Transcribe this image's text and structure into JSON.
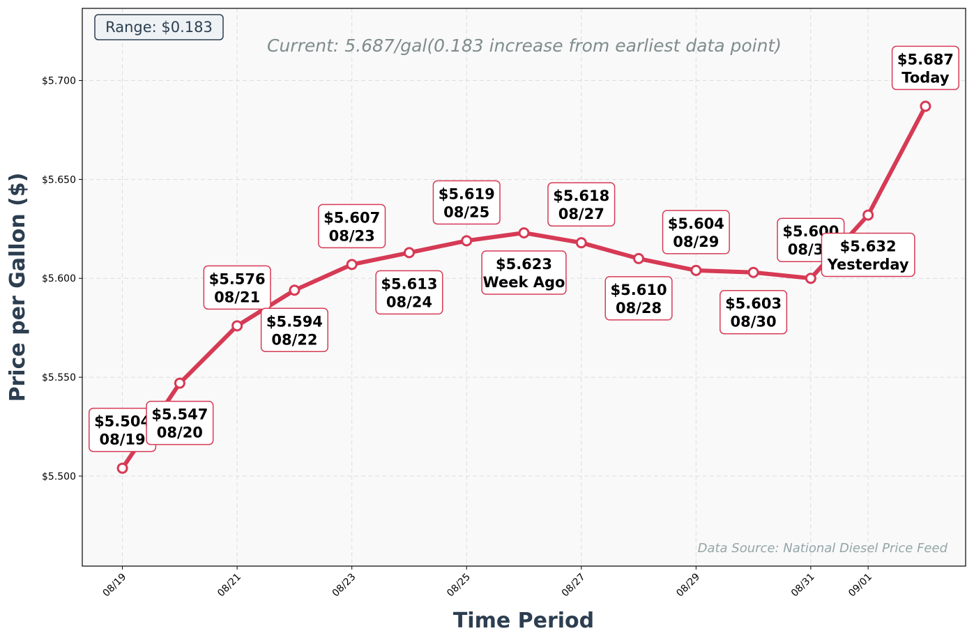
{
  "chart_data": {
    "type": "line",
    "subtitle": "Current: 5.687/gal(0.183 increase from earliest data point)",
    "xlabel": "Time Period",
    "ylabel": "Price per Gallon ($)",
    "range_label": "Range: $0.183",
    "source_note": "Data Source: National Diesel Price Feed",
    "ylim": [
      5.4545,
      5.7365
    ],
    "yticks": [
      5.5,
      5.55,
      5.6,
      5.65,
      5.7
    ],
    "ytick_labels": [
      "$5.500",
      "$5.550",
      "$5.600",
      "$5.650",
      "$5.700"
    ],
    "xlim": [
      "08/18",
      "09/03"
    ],
    "xticks": [
      "08/19",
      "08/21",
      "08/23",
      "08/25",
      "08/27",
      "08/29",
      "08/31",
      "09/01"
    ],
    "grid": true,
    "colors": {
      "line": "#d63a55",
      "marker_fill": "#ffffff",
      "plot_bg": "#f9f9f9",
      "label_border": "#d63a55"
    },
    "series": [
      {
        "x": [
          "08/19",
          "08/20",
          "08/21",
          "08/22",
          "08/23",
          "08/24",
          "08/25",
          "08/26",
          "08/27",
          "08/28",
          "08/29",
          "08/30",
          "08/31",
          "09/01",
          "09/02"
        ],
        "values": [
          5.504,
          5.547,
          5.576,
          5.594,
          5.607,
          5.613,
          5.619,
          5.623,
          5.618,
          5.61,
          5.604,
          5.603,
          5.6,
          5.632,
          5.687
        ]
      }
    ],
    "annotations": [
      {
        "x": "08/19",
        "price": "$5.504",
        "tag": "08/19",
        "pos": "above"
      },
      {
        "x": "08/20",
        "price": "$5.547",
        "tag": "08/20",
        "pos": "below"
      },
      {
        "x": "08/21",
        "price": "$5.576",
        "tag": "08/21",
        "pos": "above"
      },
      {
        "x": "08/22",
        "price": "$5.594",
        "tag": "08/22",
        "pos": "below"
      },
      {
        "x": "08/23",
        "price": "$5.607",
        "tag": "08/23",
        "pos": "above"
      },
      {
        "x": "08/24",
        "price": "$5.613",
        "tag": "08/24",
        "pos": "below"
      },
      {
        "x": "08/25",
        "price": "$5.619",
        "tag": "08/25",
        "pos": "above"
      },
      {
        "x": "08/26",
        "price": "$5.623",
        "tag": "Week Ago",
        "pos": "below"
      },
      {
        "x": "08/27",
        "price": "$5.618",
        "tag": "08/27",
        "pos": "above"
      },
      {
        "x": "08/28",
        "price": "$5.610",
        "tag": "08/28",
        "pos": "below"
      },
      {
        "x": "08/29",
        "price": "$5.604",
        "tag": "08/29",
        "pos": "above"
      },
      {
        "x": "08/30",
        "price": "$5.603",
        "tag": "08/30",
        "pos": "below"
      },
      {
        "x": "08/31",
        "price": "$5.600",
        "tag": "08/31",
        "pos": "above"
      },
      {
        "x": "09/01",
        "price": "$5.632",
        "tag": "Yesterday",
        "pos": "below"
      },
      {
        "x": "09/02",
        "price": "$5.687",
        "tag": "Today",
        "pos": "above"
      }
    ]
  }
}
